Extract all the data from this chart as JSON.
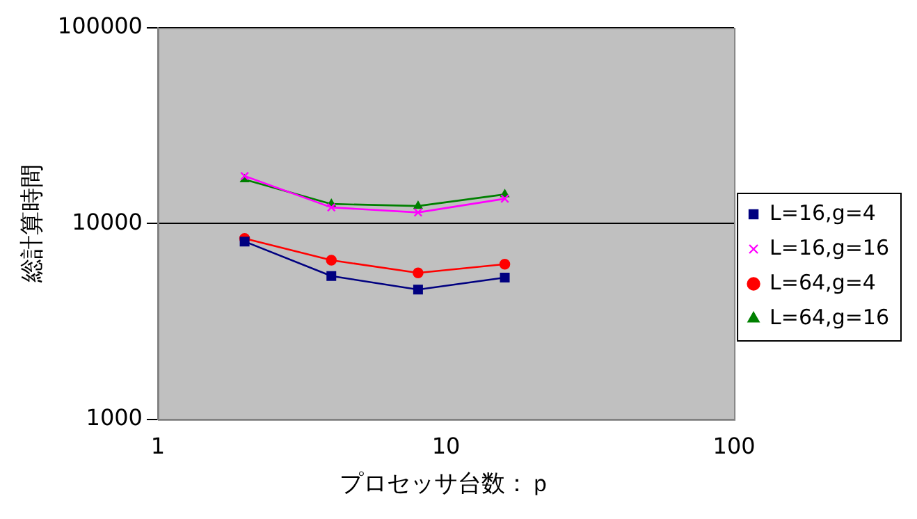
{
  "chart_data": {
    "type": "line",
    "xlabel": "プロセッサ台数：ｐ",
    "ylabel": "総計算時間",
    "log": "xy",
    "xlim": [
      1,
      100
    ],
    "xticks": [
      1,
      10,
      100
    ],
    "ylim": [
      1000,
      100000
    ],
    "yticks": [
      1000,
      10000,
      100000
    ],
    "grid": "y",
    "legend": "right",
    "series": [
      {
        "name": "L=16,g=4",
        "color": "#000080",
        "marker": "square",
        "x": [
          2,
          4,
          8,
          16
        ],
        "values": [
          8100,
          5400,
          4600,
          5300
        ]
      },
      {
        "name": "L=16,g=16",
        "color": "#ff00ff",
        "marker": "cross",
        "x": [
          2,
          4,
          8,
          16
        ],
        "values": [
          17500,
          12100,
          11400,
          13400
        ]
      },
      {
        "name": "L=64,g=4",
        "color": "#ff0000",
        "marker": "circle",
        "x": [
          2,
          4,
          8,
          16
        ],
        "values": [
          8400,
          6500,
          5600,
          6200
        ]
      },
      {
        "name": "L=64,g=16",
        "color": "#008000",
        "marker": "triangle",
        "x": [
          2,
          4,
          8,
          16
        ],
        "values": [
          16800,
          12600,
          12300,
          14100
        ]
      }
    ]
  }
}
